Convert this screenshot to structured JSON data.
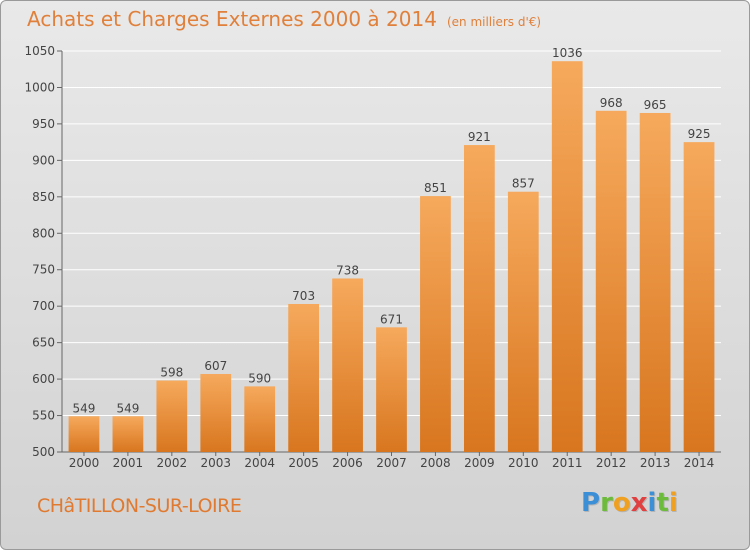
{
  "title": "Achats et Charges Externes 2000 à 2014",
  "subtitle": "(en milliers d'€)",
  "location": "CHâTILLON-SUR-LOIRE",
  "logo": {
    "letters": [
      "P",
      "r",
      "o",
      "x",
      "i",
      "t",
      "i"
    ],
    "colors": [
      "#3b8fd6",
      "#6dbb3a",
      "#f0a020",
      "#e04040",
      "#3b8fd6",
      "#6dbb3a",
      "#f0a020"
    ]
  },
  "colors": {
    "bar_top": "#f6a95c",
    "bar_bottom": "#d8761f",
    "grid": "#ffffff",
    "text": "#444444"
  },
  "chart_data": {
    "type": "bar",
    "title": "Achats et Charges Externes 2000 à 2014",
    "subtitle": "(en milliers d'€)",
    "xlabel": "",
    "ylabel": "",
    "categories": [
      "2000",
      "2001",
      "2002",
      "2003",
      "2004",
      "2005",
      "2006",
      "2007",
      "2008",
      "2009",
      "2010",
      "2011",
      "2012",
      "2013",
      "2014"
    ],
    "values": [
      549,
      549,
      598,
      607,
      590,
      703,
      738,
      671,
      851,
      921,
      857,
      1036,
      968,
      965,
      925
    ],
    "ylim": [
      500,
      1050
    ],
    "yticks": [
      500,
      550,
      600,
      650,
      700,
      750,
      800,
      850,
      900,
      950,
      1000,
      1050
    ],
    "grid": true,
    "data_labels": true
  }
}
